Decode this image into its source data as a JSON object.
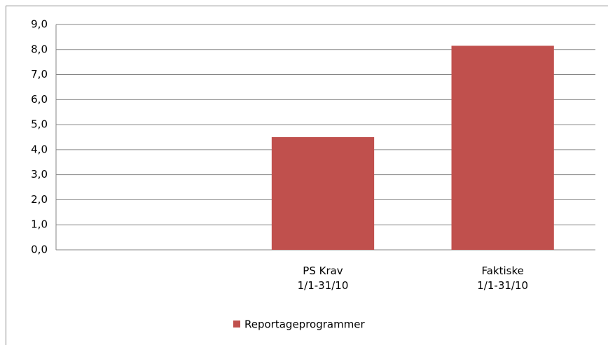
{
  "chart_data": {
    "type": "bar",
    "categories": [
      null,
      "PS Krav\n1/1-31/10",
      "Faktiske\n1/1-31/10"
    ],
    "series": [
      {
        "name": "Reportageprogrammer",
        "color": "#c0504d",
        "values": [
          null,
          4.5,
          8.15
        ]
      }
    ],
    "ylim": [
      0,
      9
    ],
    "yticks": [
      {
        "value": 0,
        "label": "0,0"
      },
      {
        "value": 1,
        "label": "1,0"
      },
      {
        "value": 2,
        "label": "2,0"
      },
      {
        "value": 3,
        "label": "3,0"
      },
      {
        "value": 4,
        "label": "4,0"
      },
      {
        "value": 5,
        "label": "5,0"
      },
      {
        "value": 6,
        "label": "6,0"
      },
      {
        "value": 7,
        "label": "7,0"
      },
      {
        "value": 8,
        "label": "8,0"
      },
      {
        "value": 9,
        "label": "9,0"
      }
    ],
    "grid": true,
    "legend": "bottom"
  }
}
